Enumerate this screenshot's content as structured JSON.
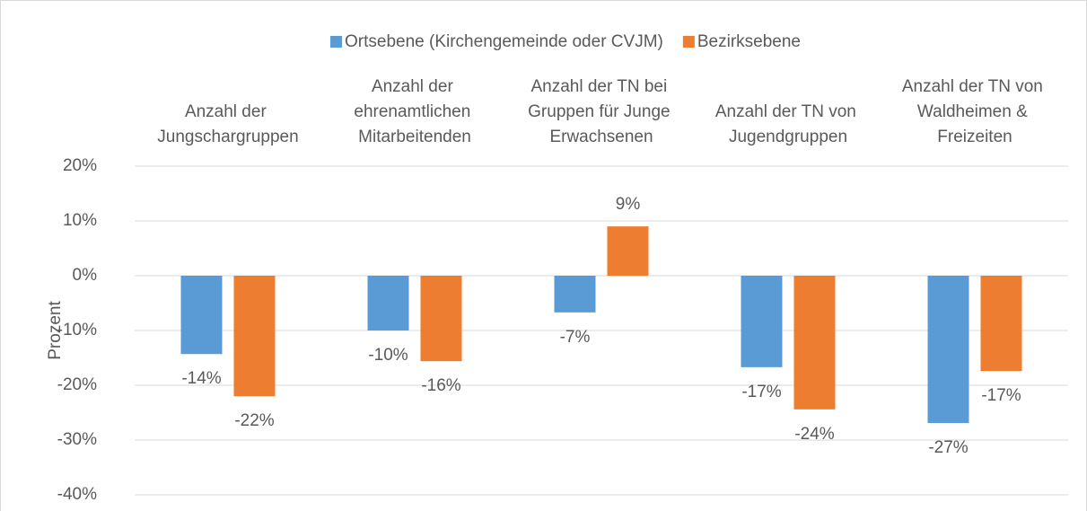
{
  "chart_data": {
    "type": "bar",
    "categories": [
      "Anzahl der Jungschargruppen",
      "Anzahl der ehrenamtlichen Mitarbeitenden",
      "Anzahl der TN bei Gruppen für Junge Erwachsenen",
      "Anzahl der TN von Jugendgruppen",
      "Anzahl der TN von Waldheimen & Freizeiten"
    ],
    "series": [
      {
        "name": "Ortsebene (Kirchengemeinde oder CVJM)",
        "color": "#5b9bd5",
        "values": [
          -14.3,
          -10.0,
          -6.7,
          -16.7,
          -26.9
        ],
        "value_labels": [
          "-14%",
          "-10%",
          "-7%",
          "-17%",
          "-27%"
        ]
      },
      {
        "name": "Bezirksebene",
        "color": "#ed7d31",
        "values": [
          -22.0,
          -15.6,
          9.0,
          -24.4,
          -17.4
        ],
        "value_labels": [
          "-22%",
          "-16%",
          "9%",
          "-24%",
          "-17%"
        ]
      }
    ],
    "y_label": "Prozent",
    "ylim": [
      -40,
      20
    ],
    "yticks": [
      {
        "value": -40,
        "label": "-40%"
      },
      {
        "value": -30,
        "label": "-30%"
      },
      {
        "value": -20,
        "label": "-20%"
      },
      {
        "value": -10,
        "label": "-10%"
      },
      {
        "value": 0,
        "label": "0%"
      },
      {
        "value": 10,
        "label": "10%"
      },
      {
        "value": 20,
        "label": "20%"
      }
    ],
    "grid": true,
    "legend": "top"
  }
}
